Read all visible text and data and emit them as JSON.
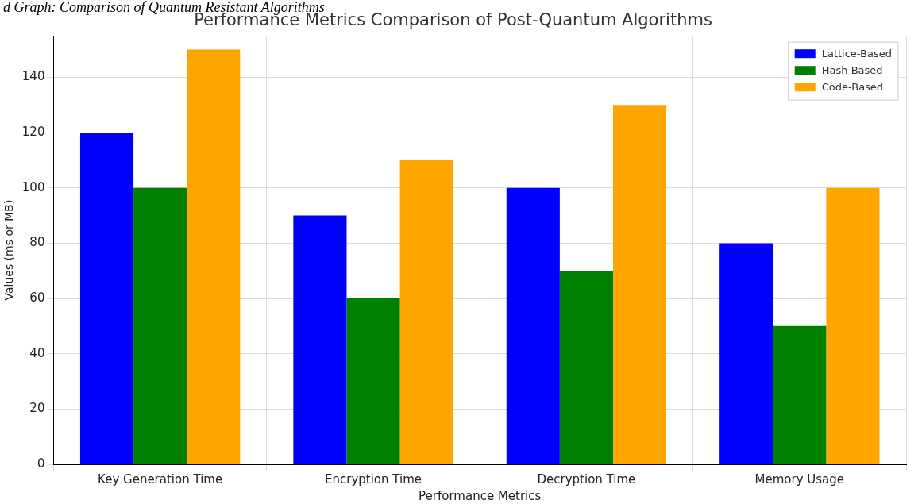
{
  "chart_data": {
    "type": "bar",
    "title": "Performance Metrics Comparison of Post-Quantum Algorithms",
    "xlabel": "Performance Metrics",
    "ylabel": "Values (ms or MB)",
    "annotations": [
      "d Graph: Comparison of Quantum Resistant Algorithms"
    ],
    "categories": [
      "Key Generation Time",
      "Encryption Time",
      "Decryption Time",
      "Memory Usage"
    ],
    "series": [
      {
        "name": "Lattice-Based",
        "color": "#0000ff",
        "values": [
          120,
          90,
          100,
          80
        ]
      },
      {
        "name": "Hash-Based",
        "color": "#008000",
        "values": [
          100,
          60,
          70,
          50
        ]
      },
      {
        "name": "Code-Based",
        "color": "#ffa500",
        "values": [
          150,
          110,
          130,
          100
        ]
      }
    ],
    "ylim": [
      0,
      155
    ],
    "yticks": [
      0,
      20,
      40,
      60,
      80,
      100,
      120,
      140
    ],
    "grid": true,
    "legend": "top right"
  }
}
